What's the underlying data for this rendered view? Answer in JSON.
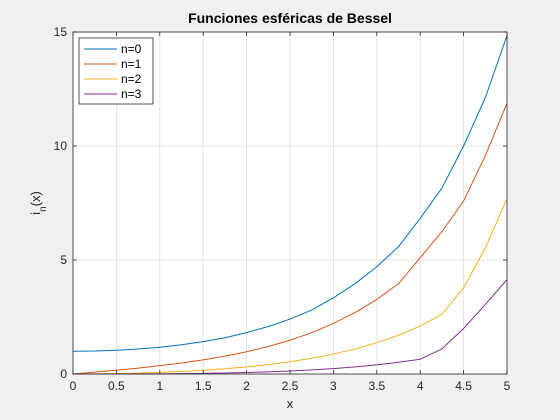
{
  "chart_data": {
    "type": "line",
    "title": "Funciones esféricas de Bessel",
    "xlabel": "x",
    "ylabel_main": "i",
    "ylabel_sub": "n",
    "ylabel_suffix": "(x)",
    "xlim": [
      0,
      5
    ],
    "ylim": [
      0,
      15
    ],
    "xticks": [
      0,
      0.5,
      1,
      1.5,
      2,
      2.5,
      3,
      3.5,
      4,
      4.5,
      5
    ],
    "xtick_labels": [
      "0",
      "0.5",
      "1",
      "1.5",
      "2",
      "2.5",
      "3",
      "3.5",
      "4",
      "4.5",
      "5"
    ],
    "yticks": [
      0,
      5,
      10,
      15
    ],
    "ytick_labels": [
      "0",
      "5",
      "10",
      "15"
    ],
    "grid": true,
    "legend_position": "top-left",
    "x": [
      0,
      0.25,
      0.5,
      0.75,
      1,
      1.25,
      1.5,
      1.75,
      2,
      2.25,
      2.5,
      2.75,
      3,
      3.25,
      3.5,
      3.75,
      4,
      4.25,
      4.5,
      4.75,
      5
    ],
    "series": [
      {
        "name": "n=0",
        "color": "#0072BD",
        "values": [
          1.0,
          1.0104,
          1.0422,
          1.0957,
          1.1752,
          1.2822,
          1.4195,
          1.5915,
          1.8134,
          2.0847,
          2.41,
          2.8051,
          3.3393,
          3.9607,
          4.7051,
          5.5855,
          6.8225,
          8.1542,
          10.0,
          12.1217,
          14.841
        ]
      },
      {
        "name": "n=1",
        "color": "#D95319",
        "values": [
          0.0,
          0.0836,
          0.1686,
          0.2567,
          0.3679,
          0.4846,
          0.6214,
          0.7825,
          0.9753,
          1.2058,
          1.482,
          1.8119,
          2.2163,
          2.6935,
          3.272,
          3.9631,
          5.1,
          6.24,
          7.59,
          9.57,
          11.8776
        ]
      },
      {
        "name": "n=2",
        "color": "#EDB120",
        "values": [
          0.0,
          0.0042,
          0.0168,
          0.0382,
          0.0689,
          0.1099,
          0.1624,
          0.2288,
          0.3113,
          0.4131,
          0.537,
          0.6889,
          0.8741,
          1.0995,
          1.3731,
          1.7032,
          2.0999,
          2.62,
          3.78,
          5.53,
          7.6766
        ]
      },
      {
        "name": "n=3",
        "color": "#7E2F8E",
        "values": [
          0.0,
          0.0001,
          0.001,
          0.0033,
          0.0079,
          0.0155,
          0.027,
          0.0431,
          0.065,
          0.0938,
          0.1311,
          0.1783,
          0.2374,
          0.311,
          0.4019,
          0.513,
          0.648,
          1.1,
          2.0,
          3.05,
          4.14
        ]
      }
    ]
  }
}
